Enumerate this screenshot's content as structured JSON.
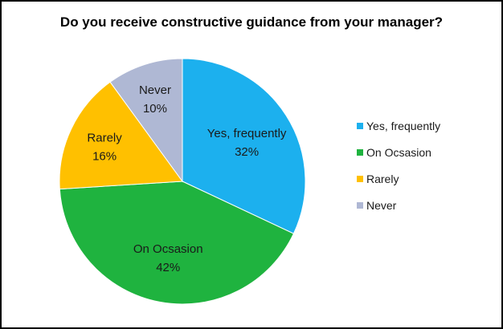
{
  "chart_data": {
    "type": "pie",
    "title": "Do you receive constructive guidance from your manager?",
    "categories": [
      "Yes, frequently",
      "On Ocsasion",
      "Rarely",
      "Never"
    ],
    "values": [
      32,
      42,
      16,
      10
    ],
    "value_labels": [
      "32%",
      "42%",
      "16%",
      "10%"
    ],
    "colors": [
      "#1CB0EE",
      "#1FB33F",
      "#FFC000",
      "#AFB8D4"
    ],
    "legend_position": "right",
    "start_angle_deg": 0,
    "direction": "clockwise"
  }
}
